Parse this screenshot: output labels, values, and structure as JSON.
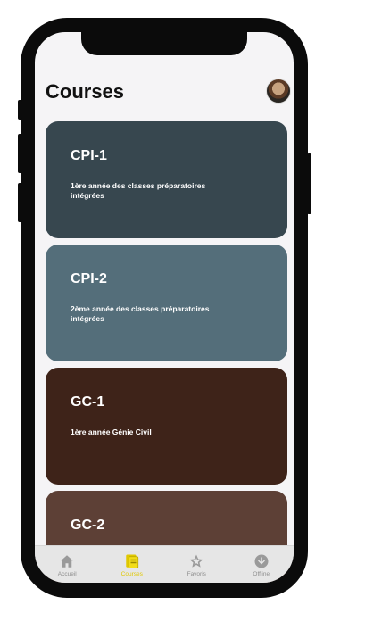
{
  "header": {
    "title": "Courses"
  },
  "courses": [
    {
      "code": "CPI-1",
      "description": "1ère année des classes préparatoires intégrées",
      "color": "#37474f"
    },
    {
      "code": "CPI-2",
      "description": "2ème année des classes préparatoires intégrées",
      "color": "#546e7a"
    },
    {
      "code": "GC-1",
      "description": "1ère année Génie Civil",
      "color": "#3e2319"
    },
    {
      "code": "GC-2",
      "description": "",
      "color": "#5d4036"
    }
  ],
  "tabs": [
    {
      "label": "Accueil",
      "icon": "home-icon"
    },
    {
      "label": "Courses",
      "icon": "courses-icon",
      "active": true
    },
    {
      "label": "Favoris",
      "icon": "star-icon"
    },
    {
      "label": "Offline",
      "icon": "download-icon"
    }
  ],
  "colors": {
    "accent": "#e0c800",
    "background": "#f5f4f6"
  }
}
